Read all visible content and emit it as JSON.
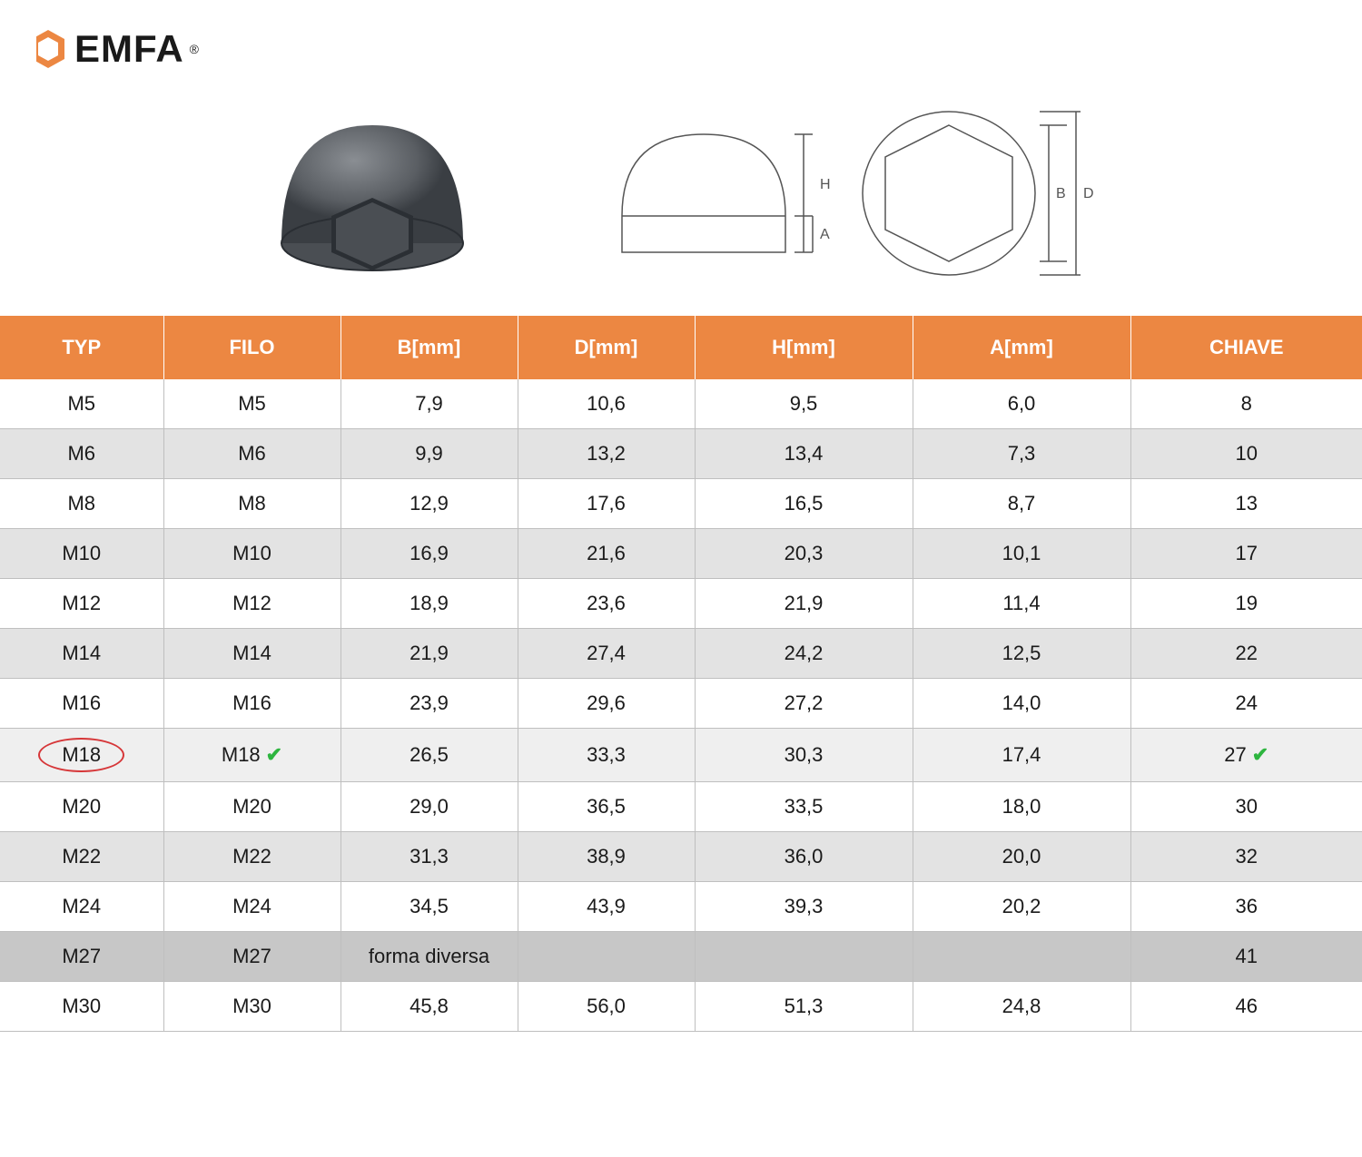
{
  "brand": "EMFA",
  "table": {
    "header_bg": "#ec8742",
    "header_fg": "#ffffff",
    "row_even_bg": "#e3e3e3",
    "row_odd_bg": "#ffffff",
    "row_dark_bg": "#c7c7c7",
    "border_color": "#bfbfbf",
    "circle_color": "#d63638",
    "check_color": "#2db53f",
    "columns": [
      "TYP",
      "FILO",
      "B[mm]",
      "D[mm]",
      "H[mm]",
      "A[mm]",
      "CHIAVE"
    ],
    "rows": [
      {
        "typ": "M5",
        "filo": "M5",
        "b": "7,9",
        "d": "10,6",
        "h": "9,5",
        "a": "6,0",
        "chiave": "8",
        "style": "odd"
      },
      {
        "typ": "M6",
        "filo": "M6",
        "b": "9,9",
        "d": "13,2",
        "h": "13,4",
        "a": "7,3",
        "chiave": "10",
        "style": "even"
      },
      {
        "typ": "M8",
        "filo": "M8",
        "b": "12,9",
        "d": "17,6",
        "h": "16,5",
        "a": "8,7",
        "chiave": "13",
        "style": "odd"
      },
      {
        "typ": "M10",
        "filo": "M10",
        "b": "16,9",
        "d": "21,6",
        "h": "20,3",
        "a": "10,1",
        "chiave": "17",
        "style": "even"
      },
      {
        "typ": "M12",
        "filo": "M12",
        "b": "18,9",
        "d": "23,6",
        "h": "21,9",
        "a": "11,4",
        "chiave": "19",
        "style": "odd"
      },
      {
        "typ": "M14",
        "filo": "M14",
        "b": "21,9",
        "d": "27,4",
        "h": "24,2",
        "a": "12,5",
        "chiave": "22",
        "style": "even"
      },
      {
        "typ": "M16",
        "filo": "M16",
        "b": "23,9",
        "d": "29,6",
        "h": "27,2",
        "a": "14,0",
        "chiave": "24",
        "style": "odd"
      },
      {
        "typ": "M18",
        "filo": "M18",
        "b": "26,5",
        "d": "33,3",
        "h": "30,3",
        "a": "17,4",
        "chiave": "27",
        "style": "highlight",
        "circled": true,
        "check_filo": true,
        "check_chiave": true
      },
      {
        "typ": "M20",
        "filo": "M20",
        "b": "29,0",
        "d": "36,5",
        "h": "33,5",
        "a": "18,0",
        "chiave": "30",
        "style": "odd"
      },
      {
        "typ": "M22",
        "filo": "M22",
        "b": "31,3",
        "d": "38,9",
        "h": "36,0",
        "a": "20,0",
        "chiave": "32",
        "style": "even"
      },
      {
        "typ": "M24",
        "filo": "M24",
        "b": "34,5",
        "d": "43,9",
        "h": "39,3",
        "a": "20,2",
        "chiave": "36",
        "style": "odd"
      },
      {
        "typ": "M27",
        "filo": "M27",
        "b": "forma diversa",
        "d": "",
        "h": "",
        "a": "",
        "chiave": "41",
        "style": "dark"
      },
      {
        "typ": "M30",
        "filo": "M30",
        "b": "45,8",
        "d": "56,0",
        "h": "51,3",
        "a": "24,8",
        "chiave": "46",
        "style": "odd"
      }
    ]
  }
}
